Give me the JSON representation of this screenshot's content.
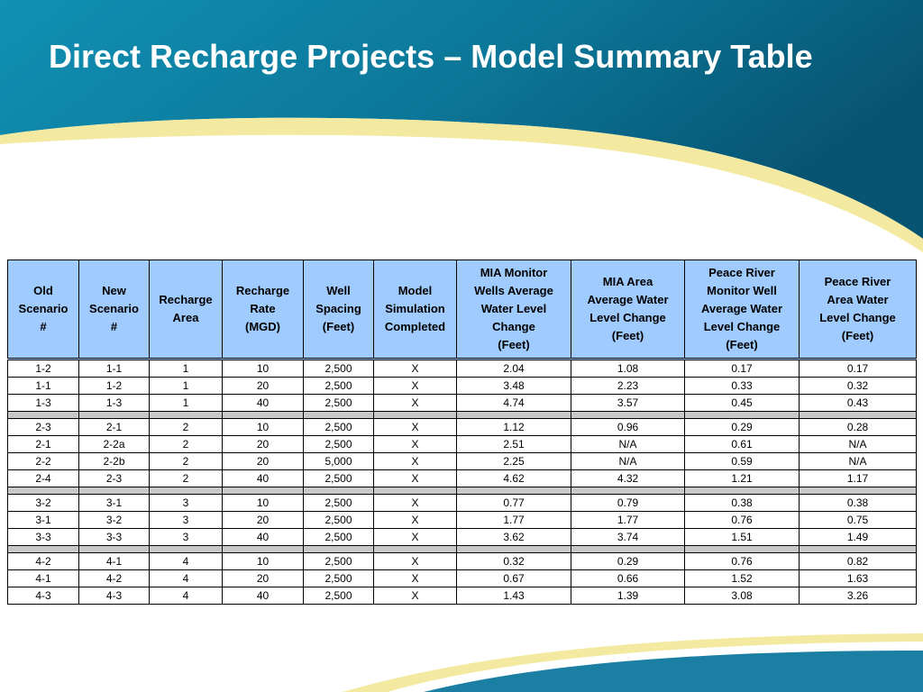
{
  "slide": {
    "title": "Direct Recharge Projects – Model Summary Table"
  },
  "colors": {
    "header_fill": "#9fcbff",
    "band_teal": "#0f7f9f",
    "band_dark": "#0a5e7c",
    "accent_yellow": "#f3e9a1",
    "separator_gray": "#c8c8c8"
  },
  "table": {
    "columns": [
      "Old\nScenario\n#",
      "New\nScenario\n#",
      "Recharge\nArea",
      "Recharge\nRate\n(MGD)",
      "Well\nSpacing\n(Feet)",
      "Model\nSimulation\nCompleted",
      "MIA Monitor\nWells Average\nWater Level\nChange\n(Feet)",
      "MIA Area\nAverage Water\nLevel Change\n(Feet)",
      "Peace River\nMonitor Well\nAverage Water\nLevel Change\n(Feet)",
      "Peace River\nArea Water\nLevel Change\n(Feet)"
    ],
    "groups": [
      [
        [
          "1-2",
          "1-1",
          "1",
          "10",
          "2,500",
          "X",
          "2.04",
          "1.08",
          "0.17",
          "0.17"
        ],
        [
          "1-1",
          "1-2",
          "1",
          "20",
          "2,500",
          "X",
          "3.48",
          "2.23",
          "0.33",
          "0.32"
        ],
        [
          "1-3",
          "1-3",
          "1",
          "40",
          "2,500",
          "X",
          "4.74",
          "3.57",
          "0.45",
          "0.43"
        ]
      ],
      [
        [
          "2-3",
          "2-1",
          "2",
          "10",
          "2,500",
          "X",
          "1.12",
          "0.96",
          "0.29",
          "0.28"
        ],
        [
          "2-1",
          "2-2a",
          "2",
          "20",
          "2,500",
          "X",
          "2.51",
          "N/A",
          "0.61",
          "N/A"
        ],
        [
          "2-2",
          "2-2b",
          "2",
          "20",
          "5,000",
          "X",
          "2.25",
          "N/A",
          "0.59",
          "N/A"
        ],
        [
          "2-4",
          "2-3",
          "2",
          "40",
          "2,500",
          "X",
          "4.62",
          "4.32",
          "1.21",
          "1.17"
        ]
      ],
      [
        [
          "3-2",
          "3-1",
          "3",
          "10",
          "2,500",
          "X",
          "0.77",
          "0.79",
          "0.38",
          "0.38"
        ],
        [
          "3-1",
          "3-2",
          "3",
          "20",
          "2,500",
          "X",
          "1.77",
          "1.77",
          "0.76",
          "0.75"
        ],
        [
          "3-3",
          "3-3",
          "3",
          "40",
          "2,500",
          "X",
          "3.62",
          "3.74",
          "1.51",
          "1.49"
        ]
      ],
      [
        [
          "4-2",
          "4-1",
          "4",
          "10",
          "2,500",
          "X",
          "0.32",
          "0.29",
          "0.76",
          "0.82"
        ],
        [
          "4-1",
          "4-2",
          "4",
          "20",
          "2,500",
          "X",
          "0.67",
          "0.66",
          "1.52",
          "1.63"
        ],
        [
          "4-3",
          "4-3",
          "4",
          "40",
          "2,500",
          "X",
          "1.43",
          "1.39",
          "3.08",
          "3.26"
        ]
      ]
    ]
  }
}
